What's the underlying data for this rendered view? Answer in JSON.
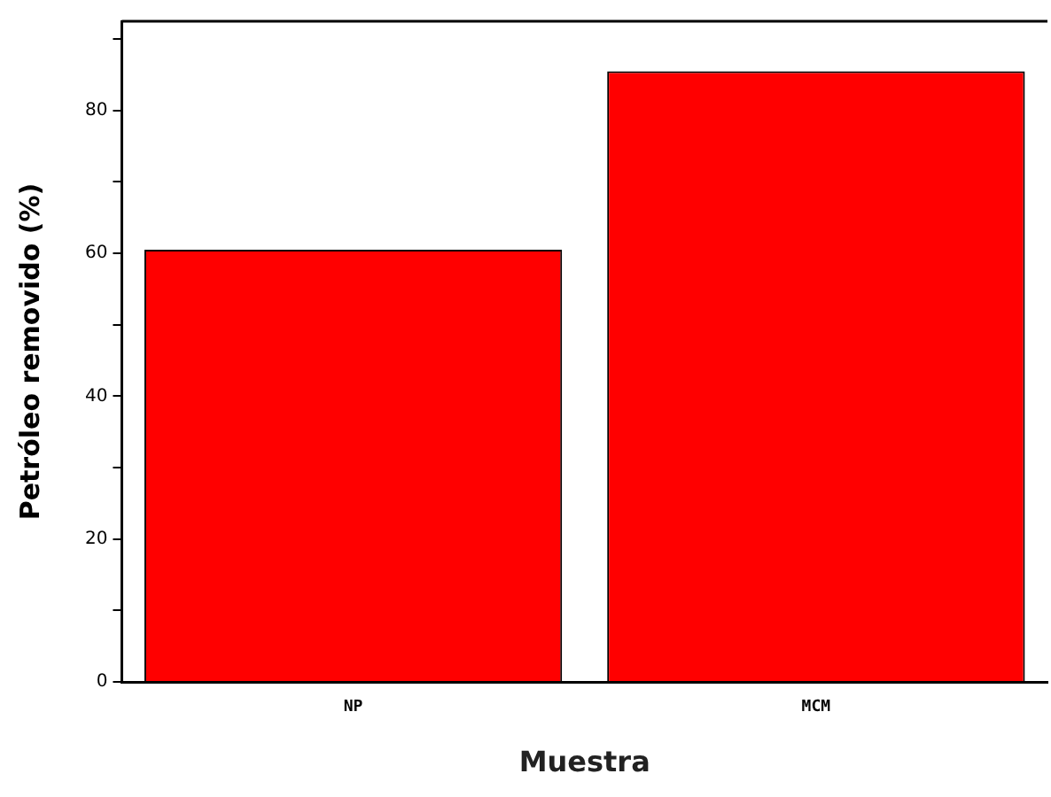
{
  "chart_data": {
    "type": "bar",
    "xlabel": "Muestra",
    "ylabel": "Petróleo removido (%)",
    "categories": [
      "NP",
      "MCM"
    ],
    "series": [
      {
        "color": "#ff0000",
        "values": [
          60.5,
          85.5
        ]
      }
    ],
    "ylim": [
      0,
      92.5
    ],
    "yticks": [
      0,
      {
        "value": 10,
        "label": null
      },
      20,
      {
        "value": 30,
        "label": null
      },
      40,
      {
        "value": 50,
        "label": null
      },
      60,
      {
        "value": 70,
        "label": null
      },
      80,
      {
        "value": 90,
        "label": null
      }
    ],
    "grid": false,
    "legend": false
  }
}
